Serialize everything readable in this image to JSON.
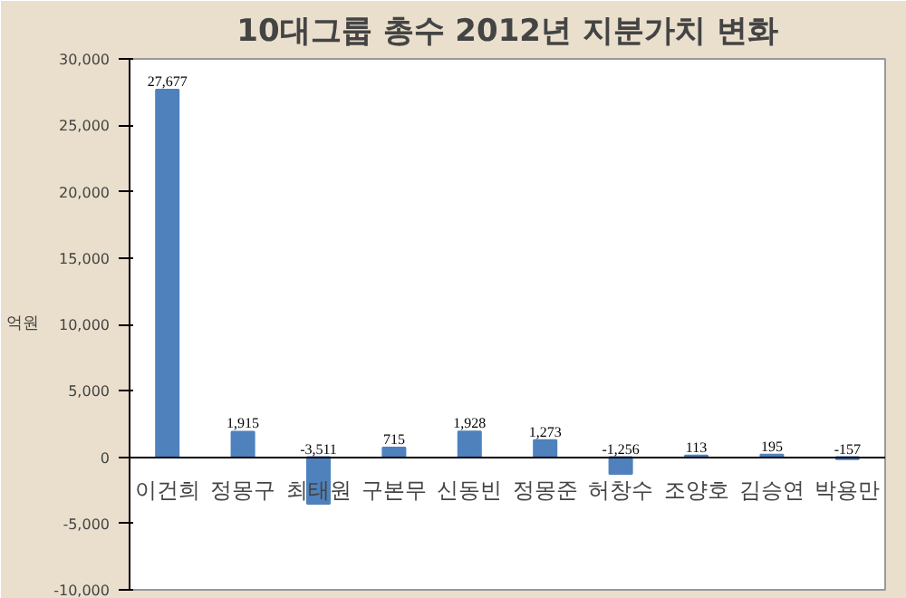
{
  "chart_data": {
    "type": "bar",
    "title": "10대그룹 총수 2012년 지분가치 변화",
    "ylabel": "억원",
    "categories": [
      "이건희",
      "정몽구",
      "최태원",
      "구본무",
      "신동빈",
      "정몽준",
      "허창수",
      "조양호",
      "김승연",
      "박용만"
    ],
    "values": [
      27677,
      1915,
      -3511,
      715,
      1928,
      1273,
      -1256,
      113,
      195,
      -157
    ],
    "value_labels": [
      "27,677",
      "1,915",
      "-3,511",
      "715",
      "1,928",
      "1,273",
      "-1,256",
      "113",
      "195",
      "-157"
    ],
    "color": "#4f81bd",
    "ylim": [
      -10000,
      30000
    ],
    "yticks": [
      {
        "value": -10000,
        "label": "-10,000"
      },
      {
        "value": -5000,
        "label": "-5,000"
      },
      0,
      {
        "value": 5000,
        "label": "5,000"
      },
      {
        "value": 10000,
        "label": "10,000"
      },
      {
        "value": 15000,
        "label": "15,000"
      },
      {
        "value": 20000,
        "label": "20,000"
      },
      {
        "value": 25000,
        "label": "25,000"
      },
      {
        "value": 30000,
        "label": "30,000"
      }
    ],
    "grid": false
  }
}
